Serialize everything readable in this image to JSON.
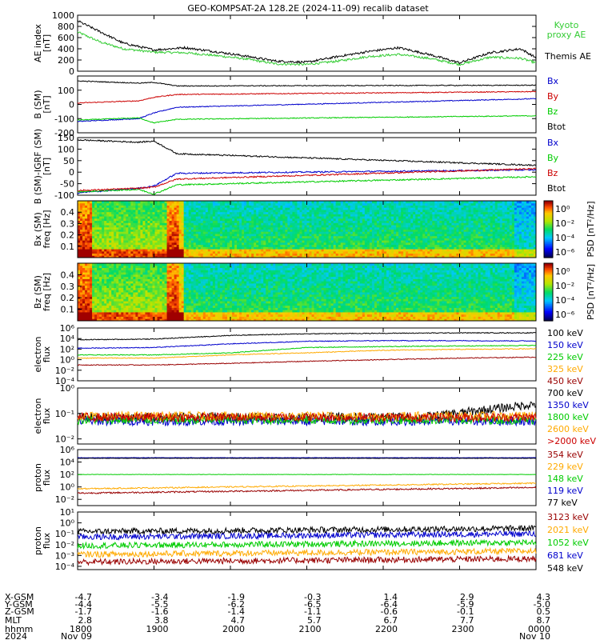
{
  "title": "GEO-KOMPSAT-2A 128.2E (2024-11-09) recalib dataset",
  "colors": {
    "black": "#000000",
    "blue": "#0000cc",
    "green": "#00cc00",
    "red": "#cc0000",
    "orange": "#ffaa00",
    "darkred": "#990000",
    "kyoto": "#33cc33"
  },
  "chart_data": [
    {
      "type": "line",
      "panel": "ae",
      "ylabel": "AE index [nT]",
      "ylim": [
        0,
        1000
      ],
      "yticks": [
        "0",
        "200",
        "400",
        "600",
        "800",
        "1000"
      ],
      "series": [
        {
          "name": "Kyoto proxy AE",
          "color": "#33cc33",
          "x": [
            18.0,
            18.3,
            18.6,
            19.0,
            19.4,
            19.8,
            20.2,
            20.6,
            21.0,
            21.4,
            21.8,
            22.2,
            22.6,
            23.0,
            23.4,
            23.8,
            24.0
          ],
          "y": [
            700,
            520,
            400,
            340,
            330,
            280,
            220,
            130,
            120,
            180,
            260,
            300,
            230,
            120,
            250,
            230,
            150
          ]
        },
        {
          "name": "Themis AE",
          "color": "#000000",
          "x": [
            18.0,
            18.3,
            18.6,
            19.0,
            19.4,
            19.8,
            20.2,
            20.6,
            21.0,
            21.4,
            21.8,
            22.2,
            22.6,
            23.0,
            23.4,
            23.8,
            24.0
          ],
          "y": [
            900,
            700,
            500,
            380,
            420,
            350,
            270,
            180,
            160,
            260,
            350,
            420,
            300,
            150,
            330,
            400,
            240
          ]
        }
      ]
    },
    {
      "type": "line",
      "panel": "b_sm",
      "ylabel": "B (SM) [nT]",
      "ylim": [
        -200,
        200
      ],
      "yticks": [
        "-200",
        "-100",
        "0",
        "100"
      ],
      "series": [
        {
          "name": "Bx",
          "color": "#0000cc",
          "x": [
            18.0,
            18.8,
            19.0,
            19.3,
            24.0
          ],
          "y": [
            -120,
            -100,
            -60,
            -20,
            40
          ]
        },
        {
          "name": "By",
          "color": "#cc0000",
          "x": [
            18.0,
            18.8,
            19.0,
            19.3,
            24.0
          ],
          "y": [
            10,
            25,
            50,
            70,
            90
          ]
        },
        {
          "name": "Bz",
          "color": "#00cc00",
          "x": [
            18.0,
            18.8,
            19.0,
            19.3,
            24.0
          ],
          "y": [
            -110,
            -95,
            -130,
            -105,
            -80
          ]
        },
        {
          "name": "Btot",
          "color": "#000000",
          "x": [
            18.0,
            18.8,
            19.0,
            19.3,
            24.0
          ],
          "y": [
            165,
            150,
            155,
            130,
            135
          ]
        }
      ]
    },
    {
      "type": "line",
      "panel": "b_minus_igrf",
      "ylabel": "B (SM)-IGRF (SM) [nT]",
      "ylim": [
        -100,
        150
      ],
      "yticks": [
        "-100",
        "-50",
        "0",
        "50",
        "100",
        "150"
      ],
      "series": [
        {
          "name": "Bx",
          "color": "#0000cc",
          "x": [
            18.0,
            18.8,
            19.0,
            19.3,
            24.0
          ],
          "y": [
            -90,
            -70,
            -60,
            -5,
            10
          ]
        },
        {
          "name": "By",
          "color": "#00cc00",
          "x": [
            18.0,
            18.8,
            19.0,
            19.3,
            24.0
          ],
          "y": [
            -85,
            -75,
            -95,
            -55,
            -20
          ]
        },
        {
          "name": "Bz",
          "color": "#cc0000",
          "x": [
            18.0,
            18.8,
            19.0,
            19.3,
            24.0
          ],
          "y": [
            -80,
            -70,
            -65,
            -30,
            15
          ]
        },
        {
          "name": "Btot",
          "color": "#000000",
          "x": [
            18.0,
            18.8,
            19.0,
            19.3,
            24.0
          ],
          "y": [
            140,
            130,
            135,
            80,
            30
          ]
        }
      ]
    },
    {
      "type": "heatmap",
      "panel": "bx_spec",
      "ylabel": "Bx (SM) freq [Hz]",
      "ylim": [
        0,
        0.5
      ],
      "yticks": [
        "0.1",
        "0.2",
        "0.3",
        "0.4"
      ],
      "colorbar_label": "PSD [nT²/Hz]",
      "colorbar_ticks": [
        "10⁰",
        "10⁻²",
        "10⁻⁴",
        "10⁻⁶"
      ]
    },
    {
      "type": "heatmap",
      "panel": "bz_spec",
      "ylabel": "Bz (SM) freq [Hz]",
      "ylim": [
        0,
        0.5
      ],
      "yticks": [
        "0.1",
        "0.2",
        "0.3",
        "0.4"
      ],
      "colorbar_label": "PSD [nT²/Hz]",
      "colorbar_ticks": [
        "10⁰",
        "10⁻²",
        "10⁻⁴",
        "10⁻⁶"
      ]
    },
    {
      "type": "line",
      "panel": "electron_low",
      "ylabel": "electron flux",
      "ylog": true,
      "yticks": [
        "10⁻⁴",
        "10⁻²",
        "10⁰",
        "10²",
        "10⁴",
        "10⁶"
      ],
      "series": [
        {
          "name": "100 keV",
          "color": "#000000",
          "x": [
            18,
            19,
            20,
            21,
            22,
            23,
            24
          ],
          "y": [
            6000,
            8000,
            40000,
            80000,
            100000,
            120000,
            120000
          ]
        },
        {
          "name": "150 keV",
          "color": "#0000cc",
          "x": [
            18,
            19,
            20,
            21,
            22,
            23,
            24
          ],
          "y": [
            150,
            200,
            1000,
            3000,
            4000,
            4000,
            3500
          ]
        },
        {
          "name": "225 keV",
          "color": "#00cc00",
          "x": [
            18,
            19,
            20,
            21,
            22,
            23,
            24
          ],
          "y": [
            8,
            8,
            20,
            200,
            300,
            400,
            500
          ]
        },
        {
          "name": "325 keV",
          "color": "#ffaa00",
          "x": [
            18,
            19,
            20,
            21,
            22,
            23,
            24
          ],
          "y": [
            2,
            2,
            8,
            20,
            60,
            90,
            120
          ]
        },
        {
          "name": "450 keV",
          "color": "#990000",
          "x": [
            18,
            19,
            20,
            21,
            22,
            23,
            24
          ],
          "y": [
            0.1,
            0.1,
            0.2,
            0.5,
            1,
            2,
            3
          ]
        }
      ]
    },
    {
      "type": "line",
      "panel": "electron_high",
      "ylabel": "electron flux",
      "ylog": true,
      "yticks": [
        "10⁻²",
        "10⁻¹",
        "10⁰"
      ],
      "series": [
        {
          "name": "700 keV",
          "color": "#000000"
        },
        {
          "name": "1350 keV",
          "color": "#0000cc"
        },
        {
          "name": "1800 keV",
          "color": "#00cc00"
        },
        {
          "name": "2600 keV",
          "color": "#ffaa00"
        },
        {
          "name": ">2000 keV",
          "color": "#cc0000"
        }
      ]
    },
    {
      "type": "line",
      "panel": "proton_low",
      "ylabel": "proton flux",
      "ylog": true,
      "yticks": [
        "10⁻²",
        "10⁰",
        "10²",
        "10⁴",
        "10⁶"
      ],
      "series": [
        {
          "name": "354 keV",
          "color": "#990000"
        },
        {
          "name": "229 keV",
          "color": "#ffaa00"
        },
        {
          "name": "148 keV",
          "color": "#00cc00"
        },
        {
          "name": "119 keV",
          "color": "#0000cc"
        },
        {
          "name": "77 keV",
          "color": "#000000"
        }
      ]
    },
    {
      "type": "line",
      "panel": "proton_high",
      "ylabel": "proton flux",
      "ylog": true,
      "yticks": [
        "10⁻⁴",
        "10⁻³",
        "10⁻²",
        "10⁻¹",
        "10⁰",
        "10¹"
      ],
      "series": [
        {
          "name": "3123 keV",
          "color": "#990000"
        },
        {
          "name": "2021 keV",
          "color": "#ffaa00"
        },
        {
          "name": "1052 keV",
          "color": "#00cc00"
        },
        {
          "name": "681 keV",
          "color": "#0000cc"
        },
        {
          "name": "548 keV",
          "color": "#000000"
        }
      ]
    }
  ],
  "ae_legend": [
    "Kyoto",
    "proxy AE",
    "Themis AE"
  ],
  "xaxis": {
    "row_labels": [
      "X-GSM",
      "Y-GSM",
      "Z-GSM",
      "MLT",
      "hhmm",
      "2024"
    ],
    "columns": [
      [
        "-4.7",
        "-4.4",
        "-1.7",
        "2.8",
        "1800",
        "Nov 09"
      ],
      [
        "-3.4",
        "-5.5",
        "-1.6",
        "3.8",
        "1900",
        ""
      ],
      [
        "-1.9",
        "-6.2",
        "-1.4",
        "4.7",
        "2000",
        ""
      ],
      [
        "-0.3",
        "-6.5",
        "-1.1",
        "5.7",
        "2100",
        ""
      ],
      [
        "1.4",
        "-6.4",
        "-0.6",
        "6.7",
        "2200",
        ""
      ],
      [
        "2.9",
        "-5.9",
        "-0.1",
        "7.7",
        "2300",
        ""
      ],
      [
        "4.3",
        "-5.0",
        "0.5",
        "8.7",
        "0000",
        "Nov 10"
      ]
    ]
  }
}
